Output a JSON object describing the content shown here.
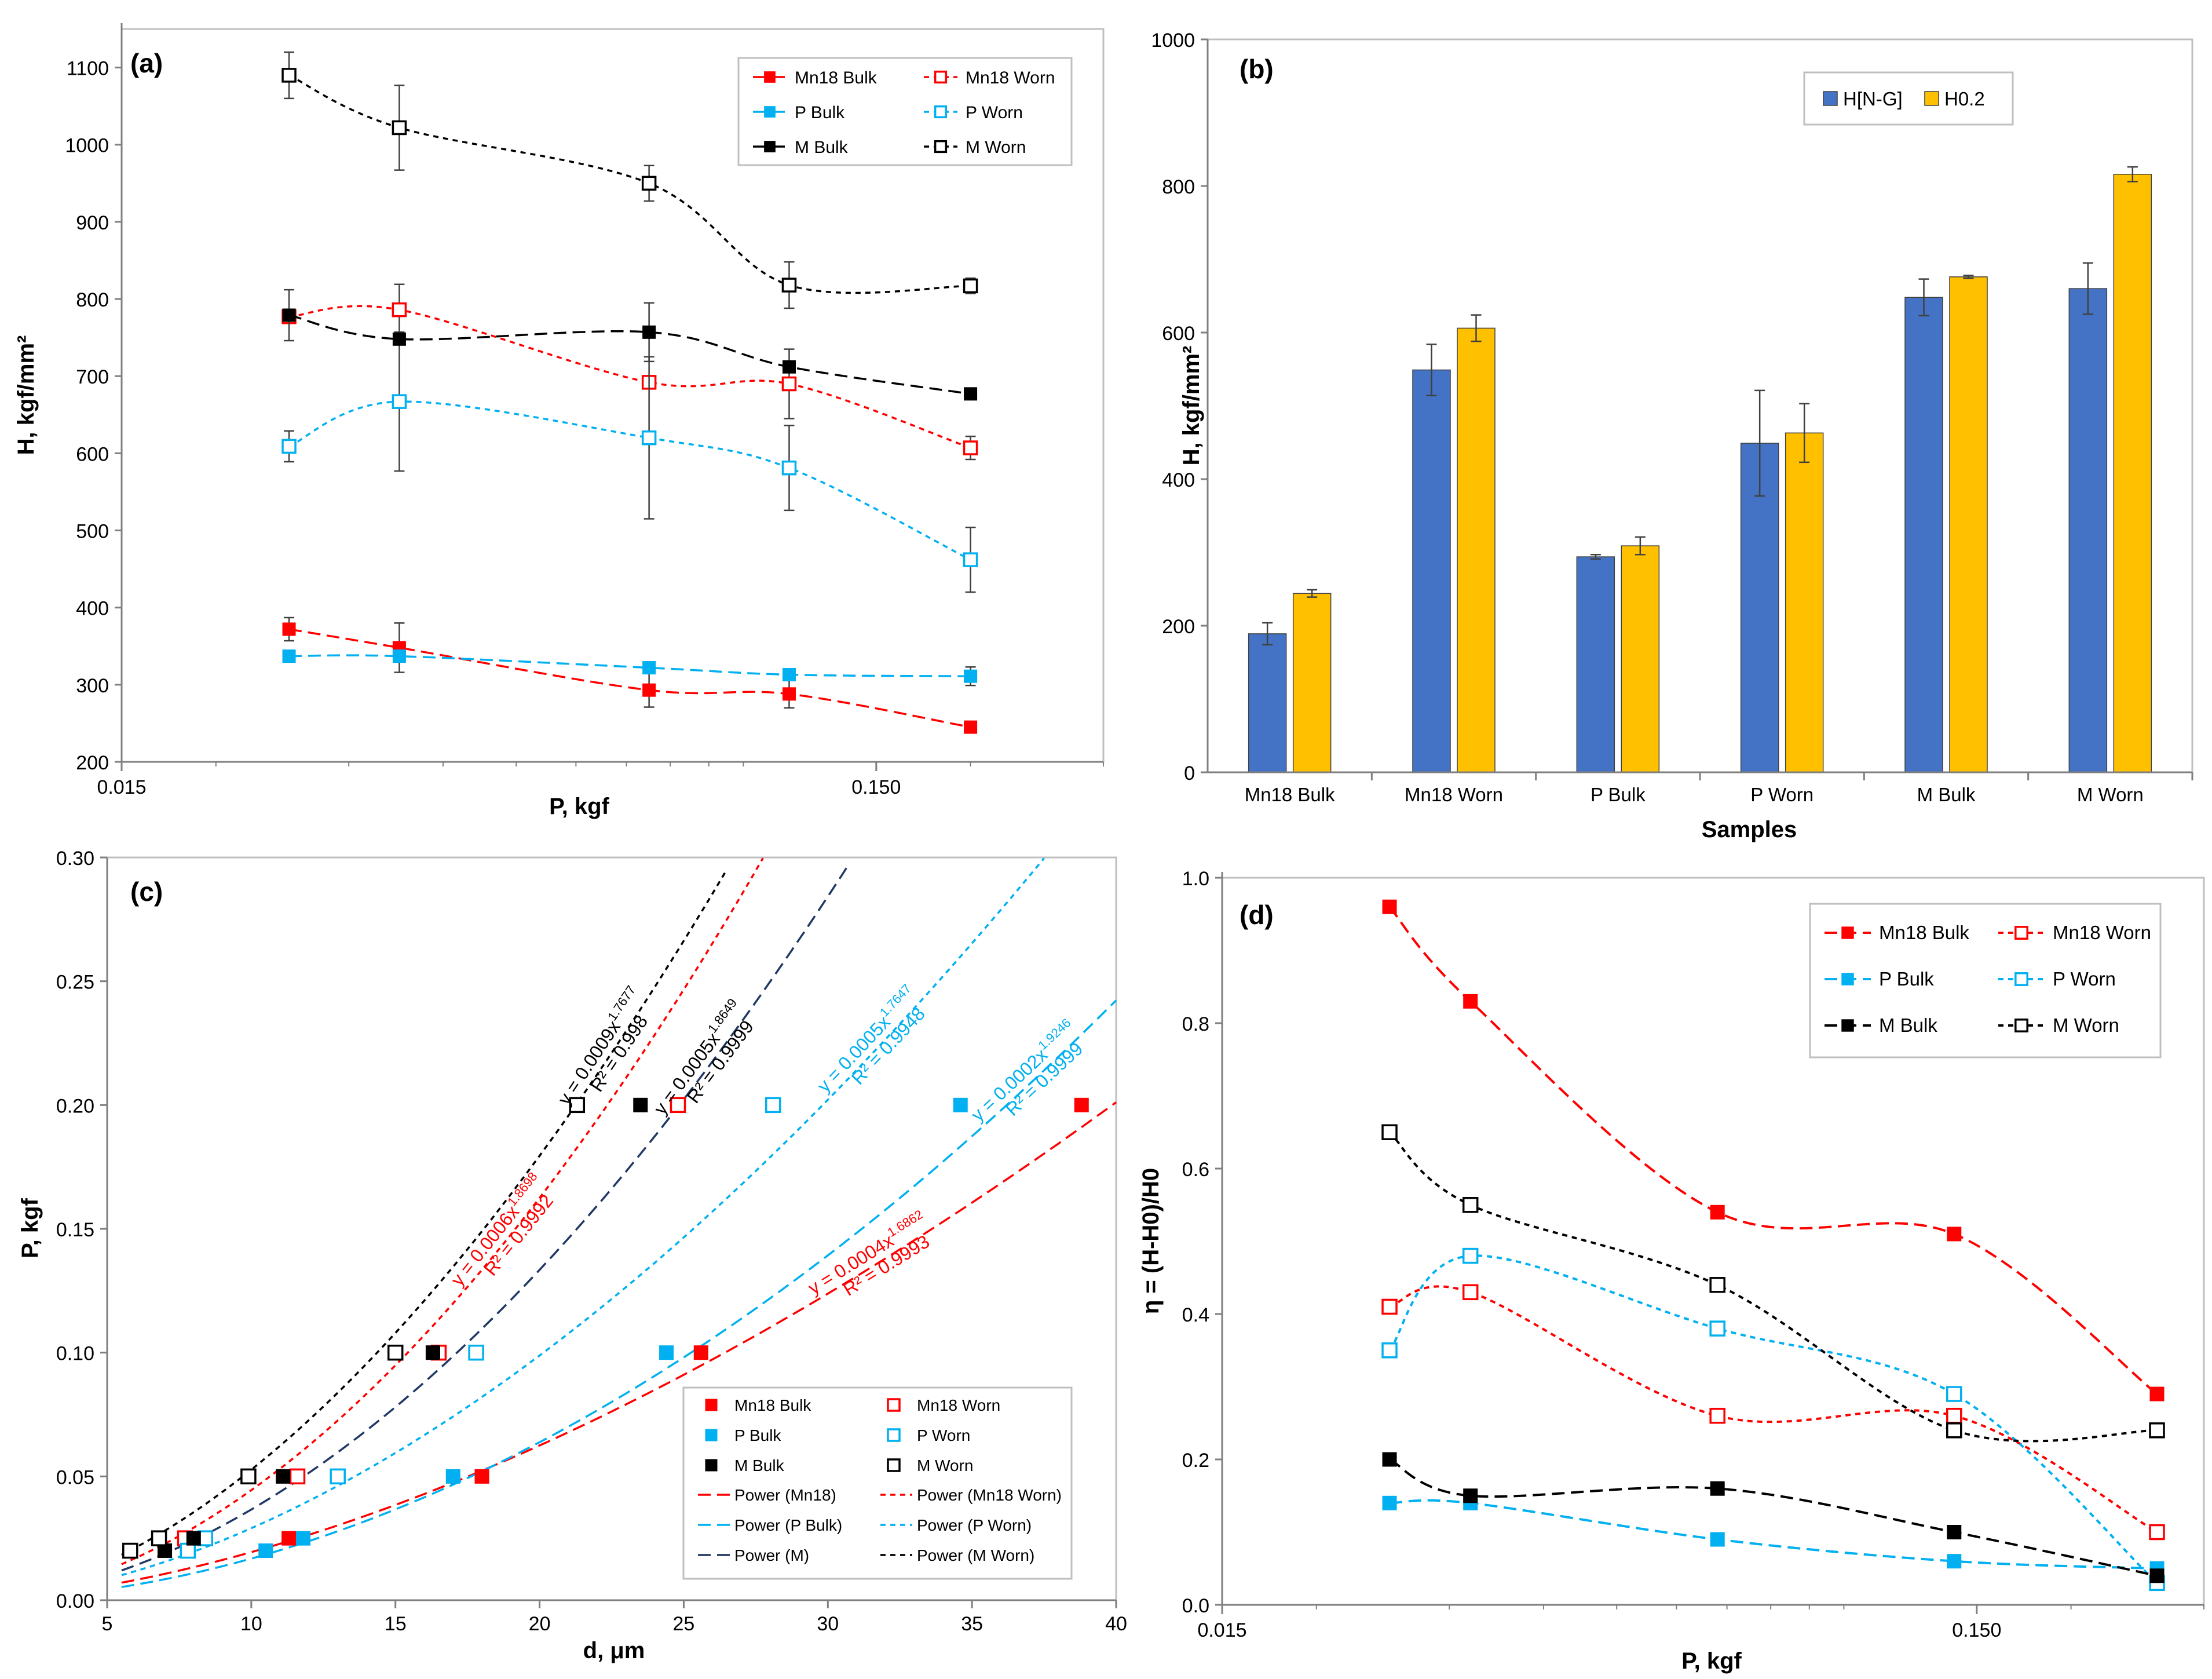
{
  "chart_data": [
    {
      "panel": "(a)",
      "type": "line",
      "xscale": "log",
      "xlabel": "P, kgf",
      "ylabel": "H, kgf/mm²",
      "xlim": [
        0.015,
        0.3
      ],
      "ylim": [
        200,
        1150
      ],
      "xticks": [
        0.015,
        0.15
      ],
      "xtick_labels": [
        "0.015",
        "0.150"
      ],
      "yticks": [
        200,
        300,
        400,
        500,
        600,
        700,
        800,
        900,
        1000,
        1100
      ],
      "x": [
        0.025,
        0.035,
        0.075,
        0.115,
        0.2
      ],
      "legend_position": "top-right",
      "series": [
        {
          "name": "Mn18 Bulk",
          "color": "#ff0000",
          "filled": true,
          "dash": "long",
          "values": [
            372,
            348,
            293,
            288,
            245
          ],
          "err": [
            15,
            32,
            22,
            18,
            0
          ]
        },
        {
          "name": "Mn18 Worn",
          "color": "#ff0000",
          "filled": false,
          "dash": "short",
          "values": [
            777,
            786,
            692,
            690,
            607
          ],
          "err": [
            0,
            33,
            0,
            45,
            15
          ]
        },
        {
          "name": "P Bulk",
          "color": "#00b0f0",
          "filled": true,
          "dash": "long",
          "values": [
            337,
            337,
            322,
            313,
            311
          ],
          "err": [
            0,
            0,
            0,
            0,
            12
          ]
        },
        {
          "name": "P Worn",
          "color": "#00b0f0",
          "filled": false,
          "dash": "short",
          "values": [
            609,
            667,
            620,
            581,
            462
          ],
          "err": [
            20,
            90,
            105,
            55,
            42
          ]
        },
        {
          "name": "M Bulk",
          "color": "#000000",
          "filled": true,
          "dash": "long",
          "values": [
            779,
            748,
            757,
            712,
            677
          ],
          "err": [
            33,
            0,
            38,
            0,
            0
          ]
        },
        {
          "name": "M Worn",
          "color": "#000000",
          "filled": false,
          "dash": "short",
          "values": [
            1090,
            1022,
            950,
            818,
            817
          ],
          "err": [
            30,
            55,
            23,
            30,
            10
          ]
        }
      ]
    },
    {
      "panel": "(b)",
      "type": "bar",
      "xlabel": "Samples",
      "ylabel": "H, kgf/mm²",
      "ylim": [
        0,
        1000
      ],
      "yticks": [
        0,
        200,
        400,
        600,
        800,
        1000
      ],
      "categories": [
        "Mn18 Bulk",
        "Mn18 Worn",
        "P Bulk",
        "P Worn",
        "M Bulk",
        "M Worn"
      ],
      "legend_position": "top-left",
      "series": [
        {
          "name": "H[N-G]",
          "color": "#4472c4",
          "values": [
            189,
            549,
            294,
            449,
            648,
            660
          ],
          "err": [
            15,
            35,
            3,
            72,
            25,
            35
          ]
        },
        {
          "name": "H0.2",
          "color": "#ffc000",
          "values": [
            244,
            606,
            309,
            463,
            676,
            816
          ],
          "err": [
            5,
            18,
            12,
            40,
            2,
            10
          ]
        }
      ]
    },
    {
      "panel": "(c)",
      "type": "scatter",
      "xlabel": "d, μm",
      "ylabel": "P, kgf",
      "xlim": [
        5,
        40
      ],
      "ylim": [
        0,
        0.3
      ],
      "xticks": [
        5,
        10,
        15,
        20,
        25,
        30,
        35,
        40
      ],
      "yticks": [
        0.0,
        0.05,
        0.1,
        0.15,
        0.2,
        0.25,
        0.3
      ],
      "ytick_labels": [
        "0.00",
        "0.05",
        "0.10",
        "0.15",
        "0.20",
        "0.25",
        "0.30"
      ],
      "legend_position": "bottom-right",
      "series": [
        {
          "name": "Mn18 Bulk",
          "color": "#ff0000",
          "filled": true,
          "x": [
            7.0,
            11.3,
            18.0,
            25.6,
            38.8
          ],
          "y": [
            0.02,
            0.025,
            0.05,
            0.1,
            0.2
          ]
        },
        {
          "name": "Mn18 Worn",
          "color": "#ff0000",
          "filled": false,
          "x": [
            7.7,
            11.6,
            16.5,
            24.8
          ],
          "y": [
            0.025,
            0.05,
            0.1,
            0.2
          ]
        },
        {
          "name": "P Bulk",
          "color": "#00b0f0",
          "filled": true,
          "x": [
            10.5,
            11.8,
            17.0,
            24.4,
            34.6
          ],
          "y": [
            0.02,
            0.025,
            0.05,
            0.1,
            0.2
          ]
        },
        {
          "name": "P Worn",
          "color": "#00b0f0",
          "filled": false,
          "x": [
            7.8,
            8.4,
            13.0,
            17.8,
            28.1
          ],
          "y": [
            0.02,
            0.025,
            0.05,
            0.1,
            0.2
          ]
        },
        {
          "name": "M Bulk",
          "color": "#000000",
          "filled": true,
          "x": [
            7.0,
            8.0,
            11.1,
            16.3,
            23.5
          ],
          "y": [
            0.02,
            0.025,
            0.05,
            0.1,
            0.2
          ]
        },
        {
          "name": "M Worn",
          "color": "#000000",
          "filled": false,
          "x": [
            5.8,
            6.8,
            9.9,
            15.0,
            21.3
          ],
          "y": [
            0.02,
            0.025,
            0.05,
            0.1,
            0.2
          ]
        }
      ],
      "fits": [
        {
          "name": "Power (Mn18)",
          "color": "#ff0000",
          "dash": "long",
          "a": 0.0004,
          "b": 1.6862,
          "eq": "y = 0.0004x",
          "exp": "1.6862",
          "r2": "R² = 0.9993",
          "ann_x": 31.5,
          "label_color": "#ff0000"
        },
        {
          "name": "Power (Mn18 Worn)",
          "color": "#ff0000",
          "dash": "short",
          "a": 0.0006,
          "b": 1.8698,
          "eq": "y = 0.0006x",
          "exp": "1.8698",
          "r2": "R² = 0.9992",
          "ann_x": 18.8,
          "label_color": "#ff0000"
        },
        {
          "name": "Power (P Bulk)",
          "color": "#00b0f0",
          "dash": "long",
          "a": 0.0002,
          "b": 1.9246,
          "eq": "y = 0.0002x",
          "exp": "1.9246",
          "r2": "R² = 0.9999",
          "ann_x": 37.0,
          "label_color": "#00b0f0"
        },
        {
          "name": "Power (P Worn)",
          "color": "#00b0f0",
          "dash": "short",
          "a": 0.0005,
          "b": 1.7647,
          "eq": "y = 0.0005x",
          "exp": "1.7647",
          "r2": "R² = 0.9948",
          "ann_x": 31.6,
          "label_color": "#00b0f0"
        },
        {
          "name": "Power (M)",
          "color": "#1f3864",
          "dash": "long",
          "a": 0.0005,
          "b": 1.8649,
          "eq": "y = 0.0005x",
          "exp": "1.8649",
          "r2": "R² = 0.9999",
          "ann_x": 25.8,
          "label_color": "#000000"
        },
        {
          "name": "Power (M Worn)",
          "color": "#000000",
          "dash": "short",
          "a": 0.0009,
          "b": 1.7677,
          "eq": "y = 0.0009x",
          "exp": "1.7677",
          "r2": "R² = 0.998",
          "ann_x": 22.4,
          "label_color": "#000000"
        }
      ]
    },
    {
      "panel": "(d)",
      "type": "line",
      "xscale": "log",
      "xlabel": "P, kgf",
      "ylabel": "η = (H-H0)/H0",
      "xlim": [
        0.015,
        0.3
      ],
      "ylim": [
        0,
        1.0
      ],
      "xticks": [
        0.015,
        0.15
      ],
      "xtick_labels": [
        "0.015",
        "0.150"
      ],
      "yticks": [
        0,
        0.2,
        0.4,
        0.6,
        0.8,
        1.0
      ],
      "ytick_labels": [
        "0.0",
        "0.2",
        "0.4",
        "0.6",
        "0.8",
        "1.0"
      ],
      "x": [
        0.025,
        0.032,
        0.068,
        0.14,
        0.26
      ],
      "legend_position": "top-right",
      "series": [
        {
          "name": "Mn18 Bulk",
          "color": "#ff0000",
          "filled": true,
          "dash": "long",
          "values": [
            0.96,
            0.83,
            0.54,
            0.51,
            0.29
          ]
        },
        {
          "name": "Mn18 Worn",
          "color": "#ff0000",
          "filled": false,
          "dash": "short",
          "values": [
            0.41,
            0.43,
            0.26,
            0.26,
            0.1
          ]
        },
        {
          "name": "P Bulk",
          "color": "#00b0f0",
          "filled": true,
          "dash": "long",
          "values": [
            0.14,
            0.14,
            0.09,
            0.06,
            0.05
          ]
        },
        {
          "name": "P Worn",
          "color": "#00b0f0",
          "filled": false,
          "dash": "short",
          "values": [
            0.35,
            0.48,
            0.38,
            0.29,
            0.03
          ]
        },
        {
          "name": "M Bulk",
          "color": "#000000",
          "filled": true,
          "dash": "long",
          "values": [
            0.2,
            0.15,
            0.16,
            0.1,
            0.04
          ]
        },
        {
          "name": "M Worn",
          "color": "#000000",
          "filled": false,
          "dash": "short",
          "values": [
            0.65,
            0.55,
            0.44,
            0.24,
            0.24
          ]
        }
      ]
    }
  ]
}
